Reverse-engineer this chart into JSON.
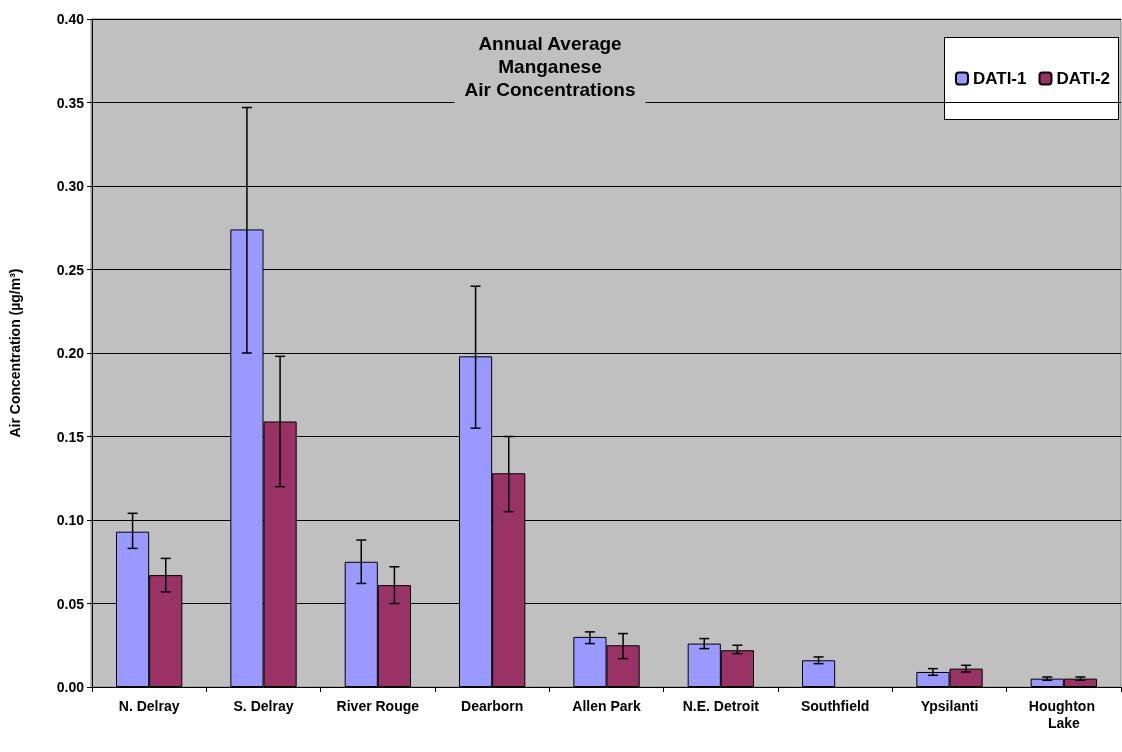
{
  "chart_data": {
    "type": "bar",
    "title": "Annual Average\nManganese\nAir Concentrations",
    "ylabel": "Air Concentration (µg/m³)",
    "categories": [
      "N. Delray",
      "S. Delray",
      "River Rouge",
      "Dearborn",
      "Allen Park",
      "N.E. Detroit",
      "Southfield",
      "Ypsilanti",
      "Houghton Lake"
    ],
    "series": [
      {
        "name": "DATI-1",
        "color": "#9999ff",
        "values": [
          0.093,
          0.274,
          0.075,
          0.198,
          0.03,
          0.026,
          0.016,
          0.009,
          0.005
        ],
        "errors": [
          [
            0.083,
            0.104
          ],
          [
            0.2,
            0.347
          ],
          [
            0.062,
            0.088
          ],
          [
            0.155,
            0.24
          ],
          [
            0.026,
            0.033
          ],
          [
            0.023,
            0.029
          ],
          [
            0.014,
            0.018
          ],
          [
            0.007,
            0.011
          ],
          [
            0.004,
            0.006
          ]
        ]
      },
      {
        "name": "DATI-2",
        "color": "#993366",
        "values": [
          0.067,
          0.159,
          0.061,
          0.128,
          0.025,
          0.022,
          null,
          0.011,
          0.005
        ],
        "errors": [
          [
            0.057,
            0.077
          ],
          [
            0.12,
            0.198
          ],
          [
            0.05,
            0.072
          ],
          [
            0.105,
            0.15
          ],
          [
            0.017,
            0.032
          ],
          [
            0.02,
            0.025
          ],
          null,
          [
            0.009,
            0.013
          ],
          [
            0.004,
            0.006
          ]
        ]
      }
    ],
    "ylim": [
      0,
      0.4
    ],
    "yticks": [
      {
        "value": 0,
        "label": "0.00"
      },
      {
        "value": 0.05,
        "label": "0.05"
      },
      {
        "value": 0.1,
        "label": "0.10"
      },
      {
        "value": 0.15,
        "label": "0.15"
      },
      {
        "value": 0.2,
        "label": "0.20"
      },
      {
        "value": 0.25,
        "label": "0.25"
      },
      {
        "value": 0.3,
        "label": "0.30"
      },
      {
        "value": 0.35,
        "label": "0.35"
      },
      {
        "value": 0.4,
        "label": "0.40"
      }
    ],
    "grid": "y",
    "legend": "top right"
  }
}
